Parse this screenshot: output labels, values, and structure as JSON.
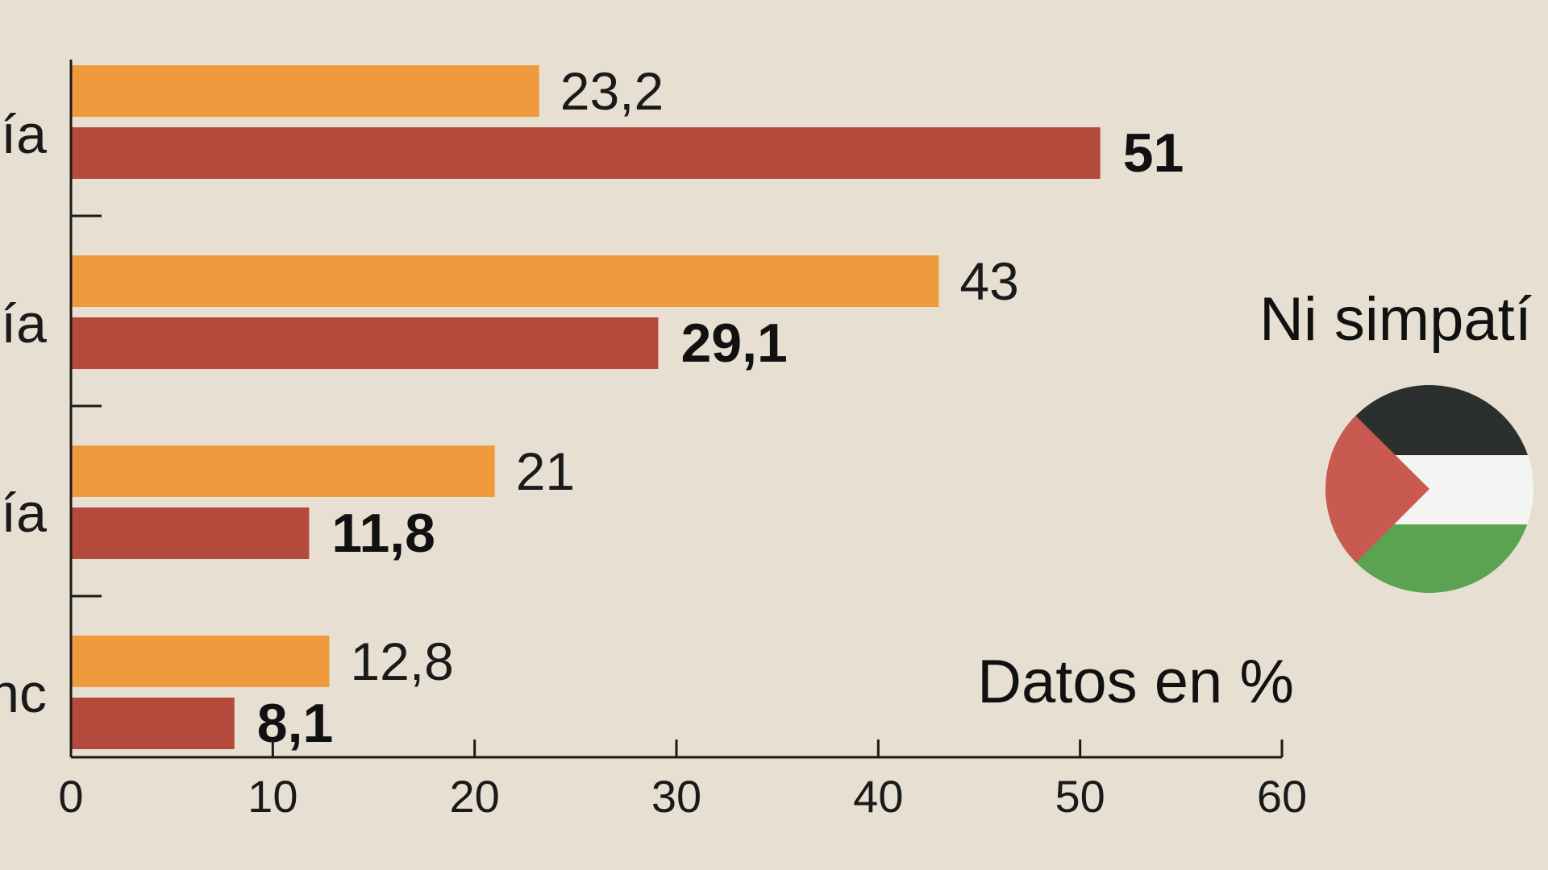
{
  "chart_data": {
    "type": "bar",
    "orientation": "horizontal",
    "categories_visible": [
      "ía",
      "ía",
      "ía",
      "nc"
    ],
    "series": [
      {
        "color": "#f09a3e",
        "values": [
          23.2,
          43,
          21,
          12.8
        ]
      },
      {
        "color": "#b34a3c",
        "values": [
          51,
          29.1,
          11.8,
          8.1
        ]
      }
    ],
    "value_labels": [
      [
        "23,2",
        "43",
        "21",
        "12,8"
      ],
      [
        "51",
        "29,1",
        "11,8",
        "8,1"
      ]
    ],
    "xlim": [
      0,
      60
    ],
    "xticks": [
      0,
      10,
      20,
      30,
      40,
      50,
      60
    ],
    "xtick_labels": [
      "0",
      "10",
      "20",
      "30",
      "40",
      "50",
      "60"
    ],
    "grid": false,
    "annotation": "Datos en %"
  },
  "side_label": "Ni simpatí",
  "flag_icon": "palestine-flag-icon",
  "colors": {
    "background": "#e7e0d2",
    "orange": "#f09a3e",
    "red": "#b34a3c",
    "flag_black": "#2b2f2e",
    "flag_white": "#f4f4f2",
    "flag_green": "#5ba352",
    "flag_red": "#c85a52"
  }
}
